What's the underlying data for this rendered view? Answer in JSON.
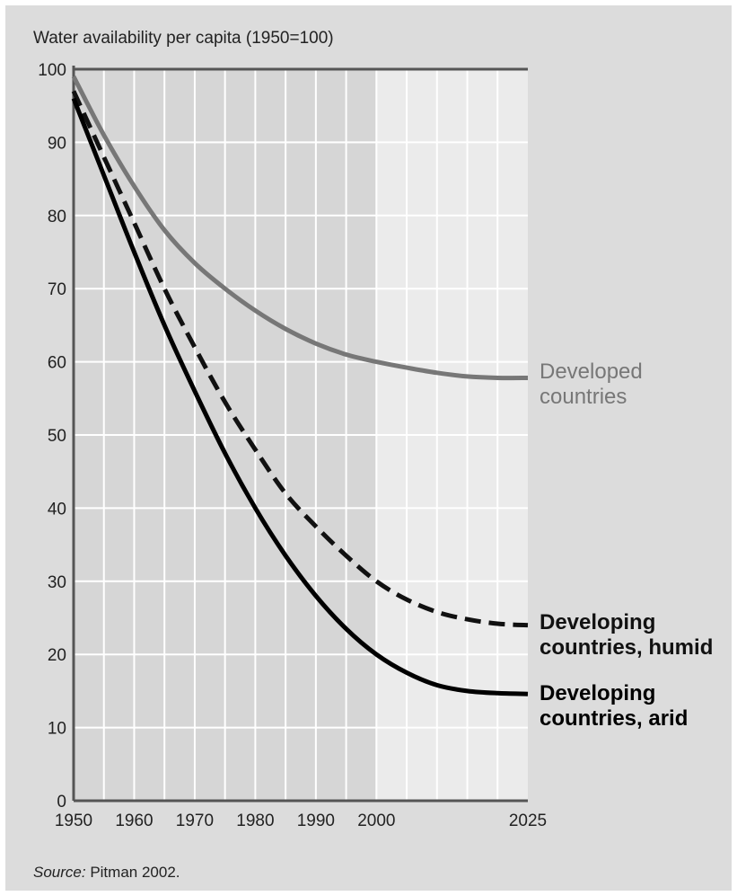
{
  "chart_data": {
    "type": "line",
    "title": "Water availability per capita (1950=100)",
    "ylim": [
      0,
      100
    ],
    "xlim": [
      1950,
      2025
    ],
    "y_ticks": [
      0,
      10,
      20,
      30,
      40,
      50,
      60,
      70,
      80,
      90,
      100
    ],
    "x_tick_labels": [
      "1950",
      "1960",
      "1970",
      "1980",
      "1990",
      "2000",
      "2025"
    ],
    "x_tick_values": [
      1950,
      1960,
      1970,
      1980,
      1990,
      2000,
      2025
    ],
    "projection_start": 2000,
    "grid": true,
    "series": [
      {
        "name": "Developed countries",
        "label_lines": [
          "Developed",
          "countries"
        ],
        "color": "#777777",
        "style": "solid",
        "x": [
          1950,
          1955,
          1960,
          1965,
          1970,
          1975,
          1980,
          1985,
          1990,
          1995,
          2000,
          2005,
          2010,
          2015,
          2020,
          2025
        ],
        "y": [
          99,
          91,
          84,
          78,
          73.5,
          70,
          67,
          64.5,
          62.5,
          61,
          60,
          59.2,
          58.5,
          58,
          57.8,
          57.8
        ]
      },
      {
        "name": "Developing countries, humid",
        "label_lines": [
          "Developing",
          "countries, humid"
        ],
        "color": "#111111",
        "style": "dashed",
        "x": [
          1950,
          1955,
          1960,
          1965,
          1970,
          1975,
          1980,
          1985,
          1990,
          1995,
          2000,
          2005,
          2010,
          2015,
          2020,
          2025
        ],
        "y": [
          97,
          88,
          79,
          70,
          62,
          54.5,
          48,
          42,
          37.5,
          33.5,
          30,
          27.5,
          25.8,
          24.8,
          24.2,
          24
        ]
      },
      {
        "name": "Developing countries, arid",
        "label_lines": [
          "Developing",
          "countries, arid"
        ],
        "color": "#000000",
        "style": "solid",
        "x": [
          1950,
          1955,
          1960,
          1965,
          1970,
          1975,
          1980,
          1985,
          1990,
          1995,
          2000,
          2005,
          2010,
          2015,
          2020,
          2025
        ],
        "y": [
          96,
          85.5,
          75,
          65,
          56,
          47.5,
          40,
          33.5,
          28,
          23.5,
          20,
          17.5,
          15.8,
          15,
          14.7,
          14.6
        ]
      }
    ]
  },
  "source": {
    "label": "Source:",
    "text": " Pitman 2002."
  },
  "colors": {
    "panel_bg": "#dcdcdc",
    "plot_bg": "#d6d6d6",
    "projection_bg": "#ebebeb",
    "grid": "#ffffff",
    "axis": "#555555"
  }
}
